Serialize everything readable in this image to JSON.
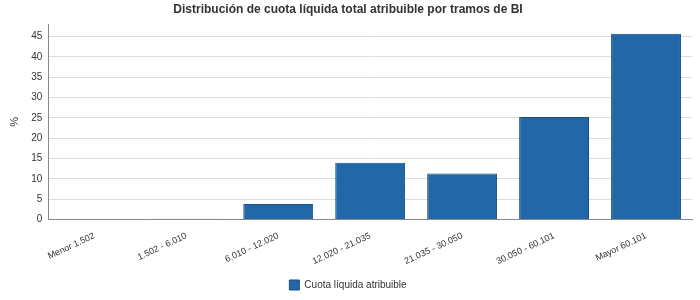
{
  "chart_data": {
    "type": "bar",
    "title": "Distribución de cuota líquida total atribuible por tramos de BI",
    "y_label": "%",
    "categories": [
      "Menor 1.502",
      "1.502 - 6.010",
      "6.010 - 12.020",
      "12.020 - 21.035",
      "21.035 - 30.050",
      "30.050 - 60.101",
      "Mayor 60.101"
    ],
    "series": [
      {
        "name": "Cuota líquida atribuible",
        "color": "#2268a9",
        "values": [
          0.05,
          0.2,
          3.8,
          14,
          11.3,
          25.2,
          45.7
        ]
      }
    ],
    "ylim": [
      0,
      48
    ],
    "yticks": [
      0,
      5,
      10,
      15,
      20,
      25,
      30,
      35,
      40,
      45
    ],
    "grid": true,
    "legend": "bottom"
  }
}
